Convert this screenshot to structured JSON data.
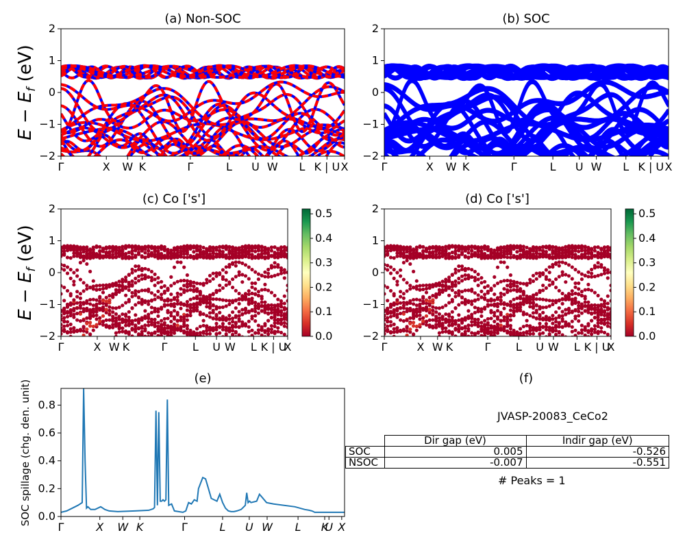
{
  "panels": [
    {
      "id": "a",
      "title": "(a) Non-SOC",
      "ylabel": "E − E_f (eV)"
    },
    {
      "id": "b",
      "title": "(b) SOC",
      "ylabel": ""
    },
    {
      "id": "c",
      "title": "(c)  Co ['s']",
      "ylabel": "E − E_f (eV)"
    },
    {
      "id": "d",
      "title": "(d) Co ['s']",
      "ylabel": ""
    },
    {
      "id": "e",
      "title": "(e)",
      "ylabel": "SOC spillage (chg. den. unit)"
    },
    {
      "id": "f",
      "title": "(f)",
      "ylabel": ""
    }
  ],
  "kpath_labels": [
    "Γ",
    "X",
    "W",
    "K",
    "Γ",
    "L",
    "U",
    "W",
    "L",
    "K | U",
    "X"
  ],
  "kpath_labels_spillage": [
    "Γ",
    "X",
    "W",
    "K",
    "Γ",
    "L",
    "U",
    "W",
    "L",
    "K",
    "U",
    "X"
  ],
  "colors": {
    "non_soc_a": "#0000ff",
    "non_soc_b": "#ff0000",
    "soc": "#0000ff",
    "spillage": "#1f77b4"
  },
  "colorbar": {
    "colormap": "RdYlGn",
    "ticks": [
      0.0,
      0.1,
      0.2,
      0.3,
      0.4,
      0.5
    ],
    "range": [
      0.0,
      0.52
    ]
  },
  "chart_data": [
    {
      "id": "a",
      "type": "line",
      "title": "(a) Non-SOC",
      "ylim": [
        -2,
        2
      ],
      "yticks": [
        -2,
        -1,
        0,
        1,
        2
      ],
      "series": [
        {
          "name": "",
          "color": "#0000ff"
        },
        {
          "name": "",
          "color": "#ff0000"
        }
      ]
    },
    {
      "id": "b",
      "type": "line",
      "title": "(b) SOC",
      "ylim": [
        -2,
        2
      ],
      "yticks": [
        -2,
        -1,
        0,
        1,
        2
      ]
    },
    {
      "id": "c",
      "type": "scatter",
      "title": "(c)  Co ['s']",
      "ylim": [
        -2,
        2
      ],
      "yticks": [
        -2,
        -1,
        0,
        1,
        2
      ]
    },
    {
      "id": "d",
      "type": "scatter",
      "title": "(d) Co ['s']",
      "ylim": [
        -2,
        2
      ],
      "yticks": [
        -2,
        -1,
        0,
        1,
        2
      ]
    },
    {
      "id": "e",
      "type": "line",
      "title": "(e)",
      "ylabel": "SOC spillage (chg. den. unit)",
      "ylim": [
        0,
        0.92
      ],
      "yticks": [
        0.0,
        0.2,
        0.4,
        0.6,
        0.8
      ],
      "x": [
        0,
        4,
        8,
        12,
        15,
        16,
        17,
        18,
        19,
        20,
        21,
        24,
        28,
        31,
        34,
        40,
        52,
        62,
        65,
        66,
        67,
        68,
        69,
        70,
        71,
        72,
        73,
        74,
        75,
        76,
        78,
        80,
        86,
        88,
        90,
        92,
        94,
        96,
        97,
        100,
        102,
        104,
        106,
        108,
        110,
        112,
        114,
        116,
        118,
        120,
        122,
        124,
        127,
        128,
        129,
        130,
        131,
        132,
        133,
        134,
        138,
        140,
        145,
        150,
        165,
        172,
        175,
        177,
        178,
        179,
        180,
        182,
        184,
        185,
        186,
        187,
        188,
        190,
        200
      ],
      "y": [
        0.03,
        0.04,
        0.06,
        0.08,
        0.1,
        0.92,
        0.4,
        0.06,
        0.07,
        0.06,
        0.05,
        0.05,
        0.07,
        0.05,
        0.04,
        0.035,
        0.04,
        0.045,
        0.055,
        0.065,
        0.76,
        0.08,
        0.75,
        0.11,
        0.11,
        0.12,
        0.11,
        0.12,
        0.84,
        0.08,
        0.09,
        0.04,
        0.03,
        0.04,
        0.1,
        0.09,
        0.12,
        0.11,
        0.2,
        0.28,
        0.27,
        0.2,
        0.13,
        0.12,
        0.11,
        0.16,
        0.1,
        0.06,
        0.04,
        0.035,
        0.035,
        0.04,
        0.05,
        0.06,
        0.07,
        0.08,
        0.17,
        0.1,
        0.11,
        0.1,
        0.11,
        0.16,
        0.1,
        0.09,
        0.07,
        0.05,
        0.045,
        0.04,
        0.035,
        0.03,
        0.03,
        0.03,
        0.03,
        0.03,
        0.03,
        0.03,
        0.03,
        0.03,
        0.03
      ]
    },
    {
      "id": "f",
      "type": "table",
      "title": "(f)"
    }
  ],
  "table": {
    "caption": "JVASP-20083_CeCo2",
    "headers": [
      "Dir gap (eV)",
      "Indir gap (eV)"
    ],
    "rows": [
      {
        "label": "SOC",
        "dir": "0.005",
        "indir": "-0.526"
      },
      {
        "label": "NSOC",
        "dir": "-0.007",
        "indir": "-0.551"
      }
    ],
    "footer": "# Peaks = 1"
  }
}
